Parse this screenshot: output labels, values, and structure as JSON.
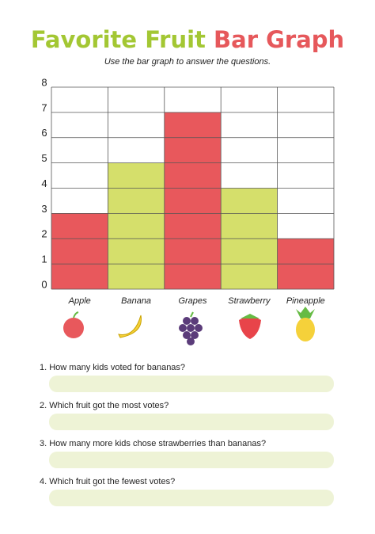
{
  "header": {
    "title": [
      "Favorite Fruit",
      "Bar Graph"
    ],
    "title_colors": [
      "#a3c733",
      "#e6585b"
    ],
    "subtitle": "Use the bar graph to answer the questions."
  },
  "chart_data": {
    "type": "bar",
    "categories": [
      "Apple",
      "Banana",
      "Grapes",
      "Strawberry",
      "Pineapple"
    ],
    "values": [
      3,
      5,
      7,
      4,
      2
    ],
    "colors": [
      "#e8585c",
      "#d5df6b",
      "#e8585c",
      "#d5df6b",
      "#e8585c"
    ],
    "ylim": [
      0,
      8
    ],
    "yticks": [
      0,
      1,
      2,
      3,
      4,
      5,
      6,
      7,
      8
    ],
    "grid": true
  },
  "questions": [
    "1. How many kids voted for bananas?",
    "2. Which fruit got the most votes?",
    "3. How many more kids chose strawberries than bananas?",
    "4. Which fruit got the fewest votes?"
  ]
}
